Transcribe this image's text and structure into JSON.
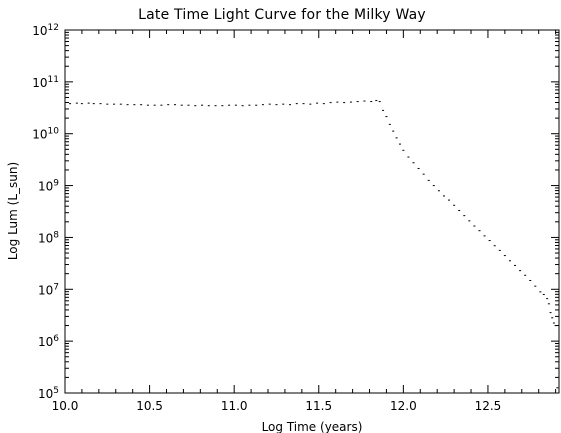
{
  "chart_data": {
    "type": "scatter",
    "title": "Late Time Light Curve for the Milky Way",
    "xlabel": "Log Time (years)",
    "ylabel": "Log Lum (L_sun)",
    "xlim": [
      10.0,
      12.92
    ],
    "ylim": [
      5,
      12
    ],
    "y_scale": "log10-exponent",
    "x_ticks": [
      "10.0",
      "10.5",
      "11.0",
      "11.5",
      "12.0",
      "12.5"
    ],
    "y_tick_base": "10",
    "y_tick_exponents": [
      "5",
      "6",
      "7",
      "8",
      "9",
      "10",
      "11",
      "12"
    ],
    "grid": false,
    "legend": "none",
    "colors": {
      "points": "#000000",
      "axes": "#000000",
      "background": "#ffffff"
    },
    "points": [
      [
        10.03,
        10.58
      ],
      [
        10.07,
        10.59
      ],
      [
        10.1,
        10.58
      ],
      [
        10.14,
        10.59
      ],
      [
        10.17,
        10.58
      ],
      [
        10.21,
        10.58
      ],
      [
        10.25,
        10.57
      ],
      [
        10.29,
        10.57
      ],
      [
        10.33,
        10.57
      ],
      [
        10.37,
        10.56
      ],
      [
        10.41,
        10.56
      ],
      [
        10.45,
        10.56
      ],
      [
        10.49,
        10.55
      ],
      [
        10.53,
        10.55
      ],
      [
        10.57,
        10.55
      ],
      [
        10.61,
        10.56
      ],
      [
        10.65,
        10.56
      ],
      [
        10.69,
        10.55
      ],
      [
        10.73,
        10.55
      ],
      [
        10.77,
        10.54
      ],
      [
        10.81,
        10.55
      ],
      [
        10.85,
        10.54
      ],
      [
        10.89,
        10.54
      ],
      [
        10.93,
        10.54
      ],
      [
        10.97,
        10.55
      ],
      [
        11.01,
        10.55
      ],
      [
        11.05,
        10.54
      ],
      [
        11.09,
        10.55
      ],
      [
        11.13,
        10.55
      ],
      [
        11.17,
        10.56
      ],
      [
        11.21,
        10.57
      ],
      [
        11.25,
        10.56
      ],
      [
        11.29,
        10.57
      ],
      [
        11.33,
        10.56
      ],
      [
        11.37,
        10.58
      ],
      [
        11.41,
        10.58
      ],
      [
        11.45,
        10.57
      ],
      [
        11.49,
        10.59
      ],
      [
        11.53,
        10.58
      ],
      [
        11.57,
        10.6
      ],
      [
        11.61,
        10.61
      ],
      [
        11.65,
        10.6
      ],
      [
        11.69,
        10.61
      ],
      [
        11.73,
        10.62
      ],
      [
        11.77,
        10.63
      ],
      [
        11.81,
        10.62
      ],
      [
        11.84,
        10.64
      ],
      [
        11.86,
        10.62
      ],
      [
        11.88,
        10.45
      ],
      [
        11.9,
        10.33
      ],
      [
        11.92,
        10.18
      ],
      [
        11.94,
        10.05
      ],
      [
        11.96,
        9.92
      ],
      [
        11.98,
        9.8
      ],
      [
        12.0,
        9.68
      ],
      [
        12.03,
        9.55
      ],
      [
        12.06,
        9.44
      ],
      [
        12.09,
        9.33
      ],
      [
        12.12,
        9.22
      ],
      [
        12.15,
        9.1
      ],
      [
        12.18,
        9.0
      ],
      [
        12.21,
        8.9
      ],
      [
        12.24,
        8.8
      ],
      [
        12.27,
        8.72
      ],
      [
        12.3,
        8.62
      ],
      [
        12.33,
        8.52
      ],
      [
        12.36,
        8.42
      ],
      [
        12.39,
        8.32
      ],
      [
        12.42,
        8.22
      ],
      [
        12.45,
        8.13
      ],
      [
        12.48,
        8.03
      ],
      [
        12.51,
        7.94
      ],
      [
        12.54,
        7.84
      ],
      [
        12.57,
        7.75
      ],
      [
        12.6,
        7.65
      ],
      [
        12.63,
        7.55
      ],
      [
        12.66,
        7.46
      ],
      [
        12.69,
        7.36
      ],
      [
        12.72,
        7.27
      ],
      [
        12.75,
        7.17
      ],
      [
        12.78,
        7.06
      ],
      [
        12.81,
        6.95
      ],
      [
        12.83,
        6.9
      ],
      [
        12.85,
        6.82
      ],
      [
        12.86,
        6.72
      ],
      [
        12.87,
        6.55
      ],
      [
        12.88,
        6.45
      ],
      [
        12.89,
        6.35
      ],
      [
        12.9,
        6.3
      ],
      [
        12.91,
        5.1
      ]
    ]
  }
}
